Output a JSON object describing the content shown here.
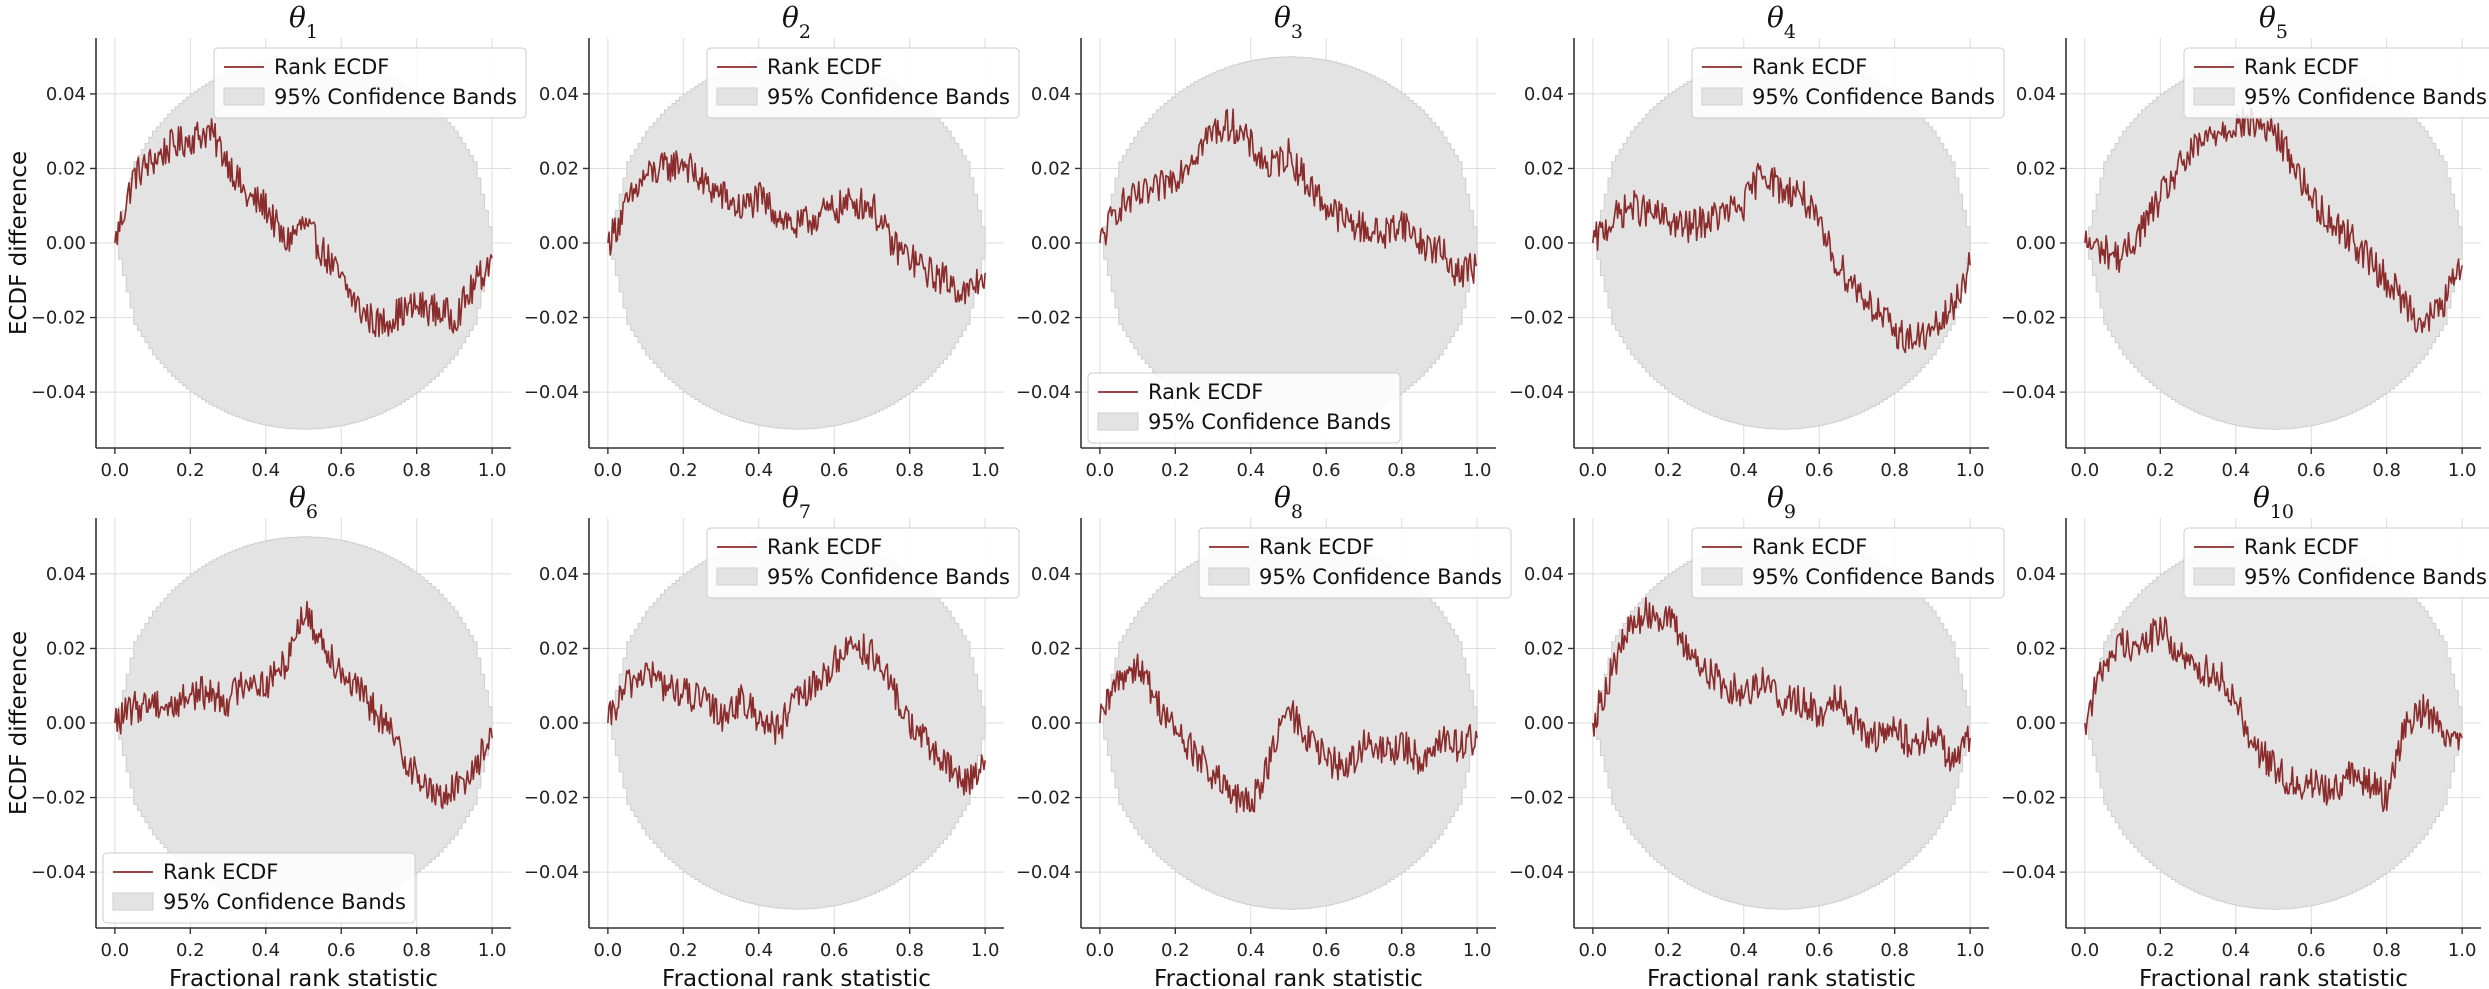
{
  "chart_data": {
    "type": "line",
    "layout": "grid",
    "rows": 2,
    "cols": 5,
    "xlabel": "Fractional rank statistic",
    "ylabel": "ECDF difference",
    "xlim": [
      -0.05,
      1.05
    ],
    "ylim": [
      -0.055,
      0.055
    ],
    "xticks": [
      0.0,
      0.2,
      0.4,
      0.6,
      0.8,
      1.0
    ],
    "yticks": [
      -0.04,
      -0.02,
      0.0,
      0.02,
      0.04
    ],
    "x_tick_labels": [
      "0.0",
      "0.2",
      "0.4",
      "0.6",
      "0.8",
      "1.0"
    ],
    "y_tick_labels": [
      "−0.04",
      "−0.02",
      "0.00",
      "0.02",
      "0.04"
    ],
    "grid": true,
    "line_color": "#8b2c2c",
    "band_color": "#e3e3e3",
    "band": {
      "x": [
        0.0,
        0.05,
        0.1,
        0.15,
        0.2,
        0.25,
        0.3,
        0.35,
        0.4,
        0.45,
        0.5,
        0.55,
        0.6,
        0.65,
        0.7,
        0.75,
        0.8,
        0.85,
        0.9,
        0.95,
        1.0
      ],
      "upper": [
        0.0,
        0.0218,
        0.03,
        0.0357,
        0.04,
        0.0433,
        0.0458,
        0.0477,
        0.049,
        0.0497,
        0.05,
        0.0497,
        0.049,
        0.0477,
        0.0458,
        0.0433,
        0.04,
        0.0357,
        0.03,
        0.0218,
        0.0
      ],
      "lower": [
        0.0,
        -0.0218,
        -0.03,
        -0.0357,
        -0.04,
        -0.0433,
        -0.0458,
        -0.0477,
        -0.049,
        -0.0497,
        -0.05,
        -0.0497,
        -0.049,
        -0.0477,
        -0.0458,
        -0.0433,
        -0.04,
        -0.0357,
        -0.03,
        -0.0218,
        0.0
      ]
    },
    "legend_labels": [
      "Rank ECDF",
      "95% Confidence Bands"
    ],
    "x": [
      0.0,
      0.05,
      0.1,
      0.15,
      0.2,
      0.25,
      0.3,
      0.35,
      0.4,
      0.45,
      0.5,
      0.55,
      0.6,
      0.65,
      0.7,
      0.75,
      0.8,
      0.85,
      0.9,
      0.95,
      1.0
    ],
    "panels": [
      {
        "title_base": "θ",
        "title_sub": "1",
        "legend": "top-right",
        "y": [
          0.0,
          0.018,
          0.022,
          0.026,
          0.028,
          0.03,
          0.022,
          0.012,
          0.01,
          0.0,
          0.005,
          -0.002,
          -0.01,
          -0.018,
          -0.022,
          -0.019,
          -0.017,
          -0.018,
          -0.02,
          -0.012,
          -0.004
        ]
      },
      {
        "title_base": "θ",
        "title_sub": "2",
        "legend": "top-right",
        "y": [
          0.0,
          0.01,
          0.018,
          0.02,
          0.022,
          0.016,
          0.013,
          0.009,
          0.012,
          0.008,
          0.004,
          0.007,
          0.009,
          0.011,
          0.01,
          0.0,
          -0.004,
          -0.008,
          -0.01,
          -0.014,
          -0.008
        ]
      },
      {
        "title_base": "θ",
        "title_sub": "3",
        "legend": "bottom-left",
        "y": [
          0.0,
          0.01,
          0.012,
          0.014,
          0.018,
          0.024,
          0.03,
          0.032,
          0.026,
          0.02,
          0.024,
          0.016,
          0.01,
          0.006,
          0.004,
          0.002,
          0.006,
          0.0,
          -0.002,
          -0.008,
          -0.006
        ]
      },
      {
        "title_base": "θ",
        "title_sub": "4",
        "legend": "top-right",
        "y": [
          0.0,
          0.006,
          0.01,
          0.008,
          0.006,
          0.004,
          0.006,
          0.008,
          0.01,
          0.02,
          0.014,
          0.014,
          0.004,
          -0.006,
          -0.012,
          -0.018,
          -0.024,
          -0.026,
          -0.024,
          -0.018,
          -0.006
        ]
      },
      {
        "title_base": "θ",
        "title_sub": "5",
        "legend": "top-right",
        "y": [
          0.0,
          -0.002,
          -0.004,
          0.004,
          0.012,
          0.02,
          0.026,
          0.03,
          0.032,
          0.032,
          0.03,
          0.022,
          0.012,
          0.006,
          0.002,
          -0.004,
          -0.01,
          -0.016,
          -0.022,
          -0.016,
          -0.006
        ]
      },
      {
        "title_base": "θ",
        "title_sub": "6",
        "legend": "bottom-left",
        "y": [
          0.0,
          0.004,
          0.006,
          0.004,
          0.008,
          0.008,
          0.006,
          0.012,
          0.01,
          0.016,
          0.03,
          0.022,
          0.014,
          0.008,
          0.002,
          -0.006,
          -0.014,
          -0.02,
          -0.018,
          -0.012,
          -0.004
        ]
      },
      {
        "title_base": "θ",
        "title_sub": "7",
        "legend": "top-right",
        "y": [
          0.0,
          0.01,
          0.014,
          0.01,
          0.008,
          0.006,
          0.002,
          0.006,
          0.002,
          -0.002,
          0.006,
          0.01,
          0.016,
          0.022,
          0.018,
          0.01,
          0.0,
          -0.006,
          -0.012,
          -0.016,
          -0.01
        ]
      },
      {
        "title_base": "θ",
        "title_sub": "8",
        "legend": "top-right",
        "y": [
          0.0,
          0.012,
          0.016,
          0.006,
          -0.002,
          -0.008,
          -0.014,
          -0.02,
          -0.022,
          -0.01,
          0.004,
          -0.004,
          -0.01,
          -0.012,
          -0.006,
          -0.008,
          -0.006,
          -0.01,
          -0.004,
          -0.006,
          -0.004
        ]
      },
      {
        "title_base": "θ",
        "title_sub": "9",
        "legend": "top-right",
        "y": [
          0.0,
          0.014,
          0.026,
          0.03,
          0.028,
          0.02,
          0.014,
          0.01,
          0.008,
          0.012,
          0.006,
          0.006,
          0.002,
          0.008,
          0.0,
          -0.004,
          -0.002,
          -0.006,
          -0.002,
          -0.01,
          -0.004
        ]
      },
      {
        "title_base": "θ",
        "title_sub": "10",
        "legend": "top-right",
        "y": [
          0.0,
          0.016,
          0.022,
          0.02,
          0.026,
          0.018,
          0.014,
          0.014,
          0.006,
          -0.006,
          -0.012,
          -0.016,
          -0.016,
          -0.018,
          -0.014,
          -0.016,
          -0.02,
          0.0,
          0.004,
          -0.002,
          -0.004
        ]
      }
    ]
  }
}
